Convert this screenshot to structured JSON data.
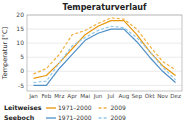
{
  "chart_data": {
    "type": "line",
    "title": "Temperaturverlauf",
    "y_label": "Temperatur [°C]",
    "categories": [
      "Jan",
      "Feb",
      "Mrz",
      "Apr",
      "Mai",
      "Jun",
      "Jul",
      "Aug",
      "Sep",
      "Okt",
      "Nov",
      "Dez"
    ],
    "ylim": [
      -7,
      20
    ],
    "yticks": [
      -5,
      0,
      5,
      10,
      15,
      20
    ],
    "grid": true,
    "legend": "bottom",
    "series": [
      {
        "name": "1971–2000",
        "group": "Leitweises",
        "color": "#e8960a",
        "line_style": "solid",
        "values": [
          -2.5,
          -1.5,
          3,
          8,
          13,
          16,
          18,
          18,
          13,
          7,
          2,
          -1.5
        ]
      },
      {
        "name": "2009",
        "group": "Leitweises",
        "color": "#f0b040",
        "line_style": "dashed",
        "values": [
          -1.0,
          1.0,
          6,
          13,
          14.5,
          17,
          19,
          18.5,
          15,
          9,
          3.5,
          0.5
        ]
      },
      {
        "name": "1971–2000",
        "group": "Seeboch",
        "color": "#5090c8",
        "line_style": "solid",
        "values": [
          -5,
          -5,
          1,
          6,
          11,
          13.5,
          15,
          15,
          10.5,
          5,
          0,
          -4
        ]
      },
      {
        "name": "2009",
        "group": "Seeboch",
        "color": "#90c8e8",
        "line_style": "dashed",
        "values": [
          -4,
          -3.5,
          3,
          9,
          12,
          14.5,
          16,
          15.5,
          12,
          7,
          1.5,
          -3
        ]
      }
    ]
  }
}
